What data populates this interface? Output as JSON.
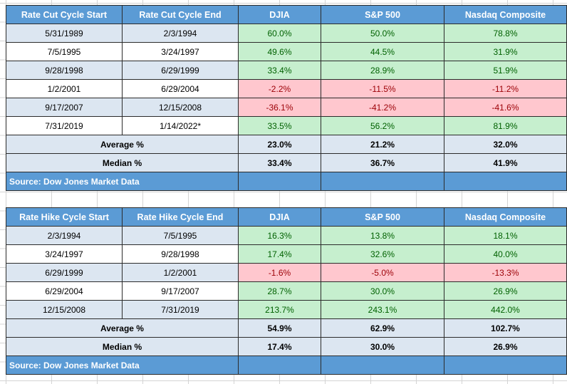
{
  "tables": [
    {
      "headers": [
        "Rate Cut Cycle Start",
        "Rate Cut Cycle End",
        "DJIA",
        "S&P 500",
        "Nasdaq Composite"
      ],
      "rows": [
        {
          "start": "5/31/1989",
          "end": "2/3/1994",
          "djia": "60.0%",
          "sp500": "50.0%",
          "nasdaq": "78.8%"
        },
        {
          "start": "7/5/1995",
          "end": "3/24/1997",
          "djia": "49.6%",
          "sp500": "44.5%",
          "nasdaq": "31.9%"
        },
        {
          "start": "9/28/1998",
          "end": "6/29/1999",
          "djia": "33.4%",
          "sp500": "28.9%",
          "nasdaq": "51.9%"
        },
        {
          "start": "1/2/2001",
          "end": "6/29/2004",
          "djia": "-2.2%",
          "sp500": "-11.5%",
          "nasdaq": "-11.2%"
        },
        {
          "start": "9/17/2007",
          "end": "12/15/2008",
          "djia": "-36.1%",
          "sp500": "-41.2%",
          "nasdaq": "-41.6%"
        },
        {
          "start": "7/31/2019",
          "end": "1/14/2022*",
          "djia": "33.5%",
          "sp500": "56.2%",
          "nasdaq": "81.9%"
        }
      ],
      "stats": [
        {
          "label": "Average %",
          "djia": "23.0%",
          "sp500": "21.2%",
          "nasdaq": "32.0%"
        },
        {
          "label": "Median %",
          "djia": "33.4%",
          "sp500": "36.7%",
          "nasdaq": "41.9%"
        }
      ],
      "source": "Source: Dow Jones Market Data"
    },
    {
      "headers": [
        "Rate Hike Cycle Start",
        "Rate Hike Cycle End",
        "DJIA",
        "S&P 500",
        "Nasdaq Composite"
      ],
      "rows": [
        {
          "start": "2/3/1994",
          "end": "7/5/1995",
          "djia": "16.3%",
          "sp500": "13.8%",
          "nasdaq": "18.1%"
        },
        {
          "start": "3/24/1997",
          "end": "9/28/1998",
          "djia": "17.4%",
          "sp500": "32.6%",
          "nasdaq": "40.0%"
        },
        {
          "start": "6/29/1999",
          "end": "1/2/2001",
          "djia": "-1.6%",
          "sp500": "-5.0%",
          "nasdaq": "-13.3%"
        },
        {
          "start": "6/29/2004",
          "end": "9/17/2007",
          "djia": "28.7%",
          "sp500": "30.0%",
          "nasdaq": "26.9%"
        },
        {
          "start": "12/15/2008",
          "end": "7/31/2019",
          "djia": "213.7%",
          "sp500": "243.1%",
          "nasdaq": "442.0%"
        }
      ],
      "stats": [
        {
          "label": "Average %",
          "djia": "54.9%",
          "sp500": "62.9%",
          "nasdaq": "102.7%"
        },
        {
          "label": "Median %",
          "djia": "17.4%",
          "sp500": "30.0%",
          "nasdaq": "26.9%"
        }
      ],
      "source": "Source: Dow Jones Market Data"
    }
  ],
  "colors": {
    "header_blue": "#5b9bd5",
    "light_blue": "#dce6f1",
    "positive_fill": "#c6efce",
    "positive_text": "#006100",
    "negative_fill": "#ffc7ce",
    "negative_text": "#9c0006"
  }
}
